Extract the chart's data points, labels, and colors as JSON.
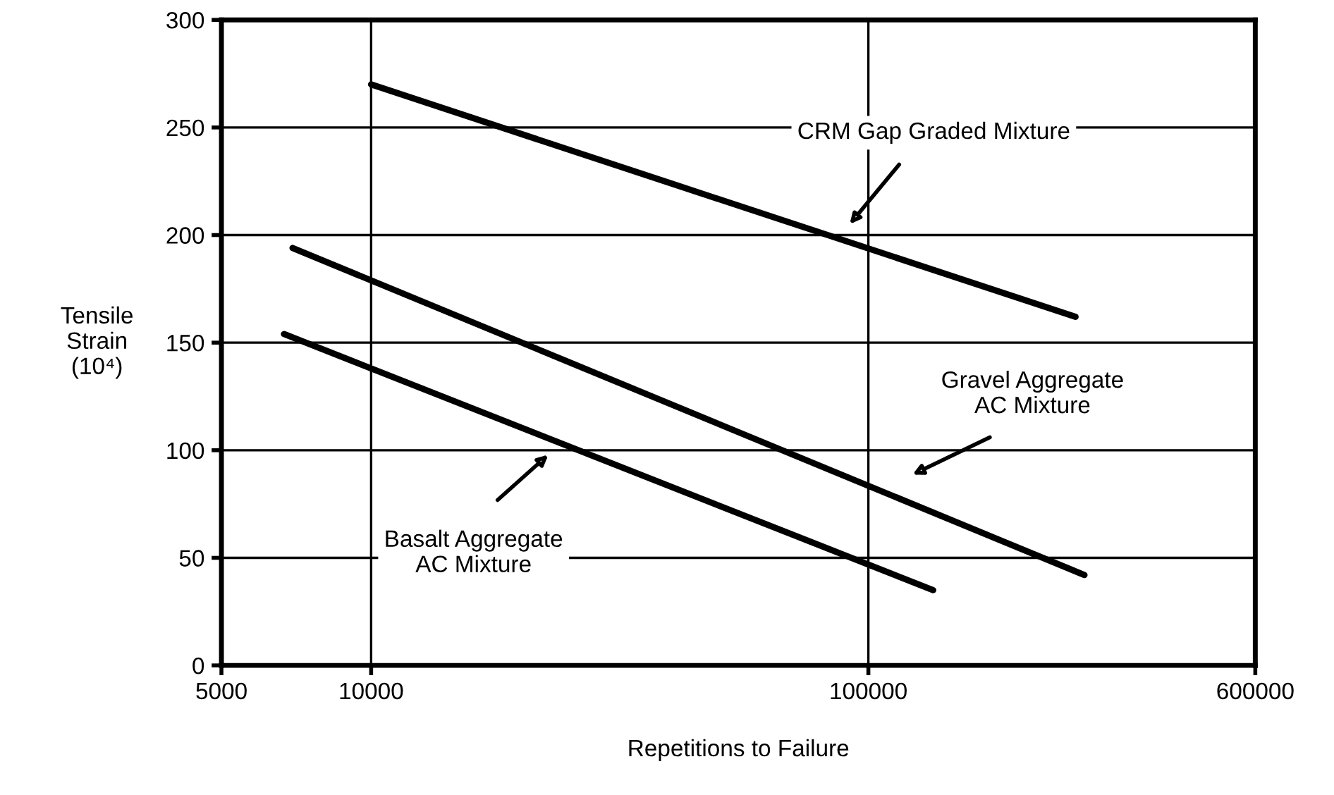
{
  "chart_data": {
    "type": "line",
    "xlabel": "Repetitions to Failure",
    "ylabel": "Tensile\nStrain\n(10⁴)",
    "log": "x",
    "xlim": [
      5000,
      600000
    ],
    "xticks": [
      5000,
      10000,
      100000,
      600000
    ],
    "ylim": [
      0,
      300
    ],
    "yticks": [
      0,
      50,
      100,
      150,
      200,
      250,
      300
    ],
    "grid": true,
    "series": [
      {
        "color": "#000000",
        "x": [
          10000,
          261000
        ],
        "values": [
          270,
          162
        ]
      },
      {
        "color": "#000000",
        "x": [
          6950,
          272000
        ],
        "values": [
          194,
          42
        ]
      },
      {
        "color": "#000000",
        "x": [
          6680,
          135000
        ],
        "values": [
          154,
          35
        ]
      }
    ],
    "annotations": [
      "CRM Gap Graded Mixture",
      "Gravel Aggregate\nAC Mixture",
      "Basalt Aggregate\nAC Mixture"
    ]
  }
}
